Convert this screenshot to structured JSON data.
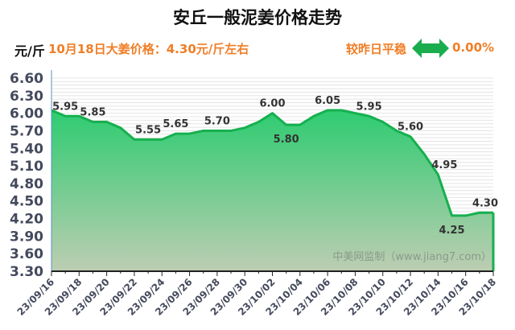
{
  "header": {
    "title": "安丘一般泥姜价格走势",
    "unit": "元/斤",
    "today_price": "10月18日大姜价格：4.30元/斤左右",
    "compare_label": "较昨日平稳",
    "compare_icon": "double-arrow-icon",
    "change_pct": "0.00%"
  },
  "watermark": "中美网监制（www.jiang7.com）",
  "colors": {
    "line": "#16b04f",
    "fill_top": "#2ecc71",
    "fill_bottom": "#bdcdb2",
    "accent": "#f07e26",
    "arrow": "#1aad4e"
  },
  "chart_data": {
    "type": "area",
    "title": "安丘一般泥姜价格走势",
    "ylabel": "元/斤",
    "xlabel": "",
    "ylim": [
      3.3,
      6.6
    ],
    "yticks": [
      "6.60",
      "6.30",
      "6.00",
      "5.70",
      "5.40",
      "5.10",
      "4.80",
      "4.50",
      "4.20",
      "3.90",
      "3.60",
      "3.30"
    ],
    "xtick_labels": [
      "23/09/16",
      "23/09/18",
      "23/09/20",
      "23/09/22",
      "23/09/24",
      "23/09/26",
      "23/09/28",
      "23/09/30",
      "23/10/02",
      "23/10/04",
      "23/10/06",
      "23/10/08",
      "23/10/10",
      "23/10/12",
      "23/10/14",
      "23/10/16",
      "23/10/18"
    ],
    "x": [
      "23/09/16",
      "23/09/17",
      "23/09/18",
      "23/09/19",
      "23/09/20",
      "23/09/21",
      "23/09/22",
      "23/09/23",
      "23/09/24",
      "23/09/25",
      "23/09/26",
      "23/09/27",
      "23/09/28",
      "23/09/29",
      "23/09/30",
      "23/10/01",
      "23/10/02",
      "23/10/03",
      "23/10/04",
      "23/10/05",
      "23/10/06",
      "23/10/07",
      "23/10/08",
      "23/10/09",
      "23/10/10",
      "23/10/11",
      "23/10/12",
      "23/10/13",
      "23/10/14",
      "23/10/15",
      "23/10/16",
      "23/10/17",
      "23/10/18"
    ],
    "values": [
      6.05,
      5.95,
      5.95,
      5.85,
      5.85,
      5.75,
      5.55,
      5.55,
      5.55,
      5.65,
      5.65,
      5.7,
      5.7,
      5.7,
      5.75,
      5.85,
      6.0,
      5.8,
      5.8,
      5.95,
      6.05,
      6.05,
      6.0,
      5.95,
      5.85,
      5.7,
      5.6,
      5.3,
      4.95,
      4.25,
      4.25,
      4.3,
      4.3
    ],
    "annotations": [
      {
        "x": "23/09/17",
        "label": "5.95"
      },
      {
        "x": "23/09/19",
        "label": "5.85"
      },
      {
        "x": "23/09/23",
        "label": "5.55"
      },
      {
        "x": "23/09/25",
        "label": "5.65"
      },
      {
        "x": "23/09/28",
        "label": "5.70"
      },
      {
        "x": "23/10/02",
        "label": "6.00"
      },
      {
        "x": "23/10/03",
        "label": "5.80"
      },
      {
        "x": "23/10/06",
        "label": "6.05"
      },
      {
        "x": "23/10/09",
        "label": "5.95"
      },
      {
        "x": "23/10/12",
        "label": "5.60"
      },
      {
        "x": "23/10/14",
        "label": "4.95"
      },
      {
        "x": "23/10/15",
        "label": "4.25"
      },
      {
        "x": "23/10/18",
        "label": "4.30"
      }
    ],
    "grid": true,
    "legend": "none"
  }
}
